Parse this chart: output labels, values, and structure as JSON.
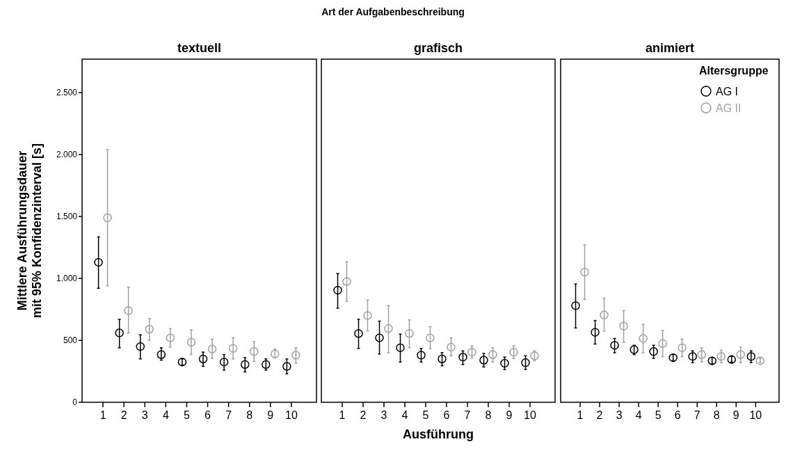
{
  "chart_data": [
    {
      "type": "scatter",
      "title": "textuell",
      "ylabel": "Mittlere Ausführungsdauer\nmit 95% Konfidenzinterval [s]",
      "annotations": [
        "Art der Aufgabenbeschreibung"
      ],
      "categories": [
        "1",
        "2",
        "3",
        "4",
        "5",
        "6",
        "7",
        "8",
        "9",
        "10"
      ],
      "ylim": [
        0,
        2770
      ],
      "yticks": [
        0,
        {
          "value": 500,
          "label": "500"
        },
        {
          "value": 1000,
          "label": "1.000"
        },
        {
          "value": 1500,
          "label": "1.500"
        },
        {
          "value": 2000,
          "label": "2.000"
        },
        {
          "value": 2500,
          "label": "2.500"
        }
      ],
      "marker": "circle",
      "grid": false,
      "legend": false,
      "series": [
        {
          "color": "#000000",
          "values": [
            1130,
            560,
            450,
            385,
            325,
            350,
            325,
            305,
            305,
            290
          ],
          "errors": [
            [
              920,
              1335
            ],
            [
              440,
              670
            ],
            [
              350,
              545
            ],
            [
              340,
              440
            ],
            [
              300,
              350
            ],
            [
              290,
              405
            ],
            [
              260,
              385
            ],
            [
              245,
              360
            ],
            [
              260,
              350
            ],
            [
              230,
              350
            ]
          ]
        },
        {
          "color": "#a0a0a0",
          "values": [
            1490,
            740,
            590,
            520,
            485,
            430,
            435,
            410,
            390,
            380
          ],
          "errors": [
            [
              940,
              2040
            ],
            [
              560,
              930
            ],
            [
              500,
              675
            ],
            [
              445,
              595
            ],
            [
              385,
              585
            ],
            [
              355,
              510
            ],
            [
              350,
              520
            ],
            [
              330,
              490
            ],
            [
              360,
              430
            ],
            [
              315,
              440
            ]
          ]
        }
      ]
    },
    {
      "type": "scatter",
      "title": "grafisch",
      "xlabel": "Ausführung",
      "categories": [
        "1",
        "2",
        "3",
        "4",
        "5",
        "6",
        "7",
        "8",
        "9",
        "10"
      ],
      "ylim": [
        0,
        2770
      ],
      "tick_labels": "x",
      "marker": "circle",
      "grid": false,
      "legend": false,
      "series": [
        {
          "color": "#000000",
          "values": [
            905,
            555,
            520,
            440,
            380,
            350,
            365,
            340,
            315,
            320
          ],
          "errors": [
            [
              760,
              1040
            ],
            [
              435,
              670
            ],
            [
              390,
              655
            ],
            [
              325,
              550
            ],
            [
              325,
              435
            ],
            [
              295,
              400
            ],
            [
              305,
              415
            ],
            [
              285,
              395
            ],
            [
              265,
              365
            ],
            [
              265,
              375
            ]
          ]
        },
        {
          "color": "#a0a0a0",
          "values": [
            975,
            700,
            595,
            555,
            520,
            445,
            405,
            385,
            405,
            375
          ],
          "errors": [
            [
              815,
              1135
            ],
            [
              575,
              825
            ],
            [
              400,
              780
            ],
            [
              440,
              665
            ],
            [
              435,
              610
            ],
            [
              375,
              520
            ],
            [
              355,
              455
            ],
            [
              325,
              440
            ],
            [
              355,
              455
            ],
            [
              335,
              415
            ]
          ]
        }
      ]
    },
    {
      "type": "scatter",
      "title": "animiert",
      "legend_title": "Altersgruppe",
      "categories": [
        "1",
        "2",
        "3",
        "4",
        "5",
        "6",
        "7",
        "8",
        "9",
        "10"
      ],
      "ylim": [
        0,
        2770
      ],
      "tick_labels": "x",
      "marker": "circle",
      "grid": false,
      "legend": "top right",
      "series": [
        {
          "name": "AG I",
          "color": "#000000",
          "values": [
            780,
            565,
            460,
            425,
            410,
            360,
            370,
            335,
            345,
            370
          ],
          "errors": [
            [
              600,
              955
            ],
            [
              470,
              660
            ],
            [
              400,
              515
            ],
            [
              385,
              460
            ],
            [
              355,
              460
            ],
            [
              335,
              385
            ],
            [
              320,
              415
            ],
            [
              310,
              360
            ],
            [
              325,
              370
            ],
            [
              320,
              415
            ]
          ]
        },
        {
          "name": "AG II",
          "color": "#a0a0a0",
          "values": [
            1050,
            705,
            615,
            515,
            475,
            440,
            385,
            370,
            385,
            335
          ],
          "errors": [
            [
              830,
              1270
            ],
            [
              575,
              840
            ],
            [
              485,
              740
            ],
            [
              400,
              630
            ],
            [
              370,
              580
            ],
            [
              370,
              510
            ],
            [
              325,
              440
            ],
            [
              320,
              420
            ],
            [
              320,
              445
            ],
            [
              320,
              355
            ]
          ]
        }
      ]
    }
  ]
}
